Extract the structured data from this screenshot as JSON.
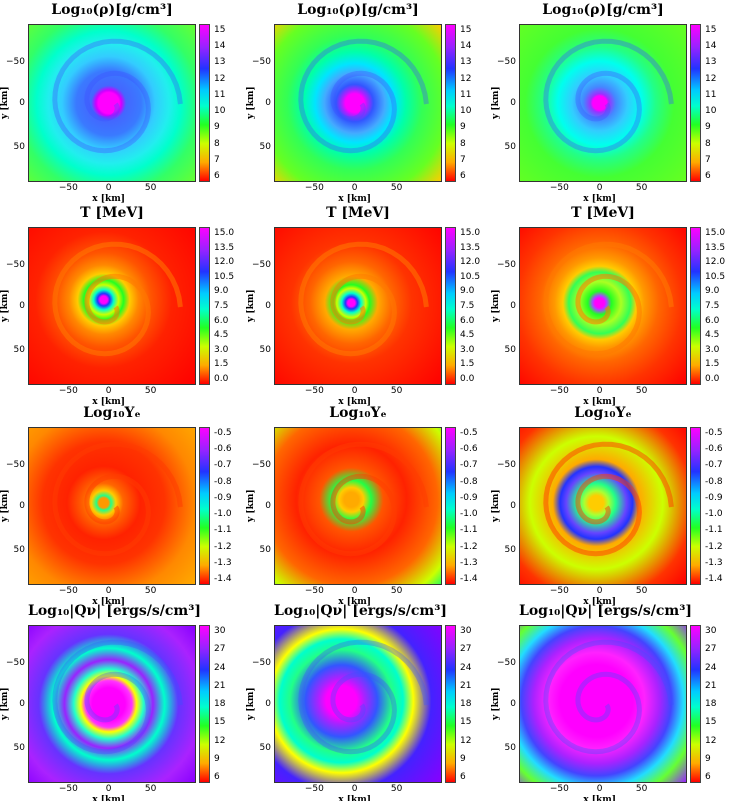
{
  "rows": [
    {
      "title": "Log₁₀(ρ)[g/cm³]",
      "colorbar_ticks": [
        "15",
        "14",
        "13",
        "12",
        "11",
        "10",
        "9",
        "8",
        "7",
        "6"
      ],
      "colormap": "rho"
    },
    {
      "title": "T [MeV]",
      "colorbar_ticks": [
        "15.0",
        "13.5",
        "12.0",
        "10.5",
        "9.0",
        "7.5",
        "6.0",
        "4.5",
        "3.0",
        "1.5",
        "0.0"
      ],
      "colormap": "temp"
    },
    {
      "title": "Log₁₀Yₑ",
      "colorbar_ticks": [
        "-0.5",
        "-0.6",
        "-0.7",
        "-0.8",
        "-0.9",
        "-1.0",
        "-1.1",
        "-1.2",
        "-1.3",
        "-1.4"
      ],
      "colormap": "ye"
    },
    {
      "title": "Log₁₀|Qν| [ergs/s/cm³]",
      "colorbar_ticks": [
        "30",
        "27",
        "24",
        "21",
        "18",
        "15",
        "12",
        "9",
        "6"
      ],
      "colormap": "q"
    }
  ],
  "axes": {
    "ylabel": "y [km]",
    "xlabel": "x [km]",
    "yticks": [
      "−50",
      "0",
      "50"
    ],
    "xticks": [
      "−50",
      "0",
      "50"
    ]
  },
  "colors": {
    "magenta": "#ff00ff",
    "blue": "#2233ff",
    "cyan": "#00ffff",
    "green": "#22ff22",
    "yellow": "#ffff00",
    "orange": "#ff8800",
    "red": "#ff0000"
  }
}
